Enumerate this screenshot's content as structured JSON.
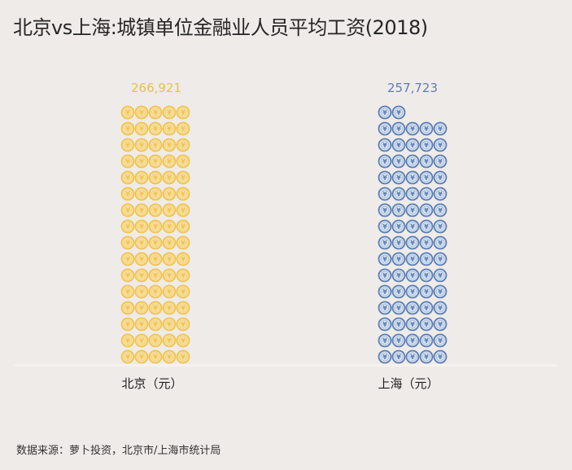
{
  "title": "北京vs上海:城镇单位金融业人员平均工资(2018)",
  "source": "数据来源：萝卜投资，北京市/上海市统计局",
  "chart_data": {
    "type": "bar",
    "subtype": "pictogram",
    "title": "北京vs上海:城镇单位金融业人员平均工资(2018)",
    "categories": [
      "北京（元）",
      "上海（元）"
    ],
    "values": [
      266921,
      257723
    ],
    "value_labels": [
      "266,921",
      "257,723"
    ],
    "icon": "yuan-coin-icon",
    "icon_counts": [
      80,
      77
    ],
    "icons_per_row": 5,
    "colors": [
      "#f0c451",
      "#5b7fb5"
    ],
    "xlabel": "",
    "ylabel": "",
    "grid": false,
    "legend": "none"
  }
}
